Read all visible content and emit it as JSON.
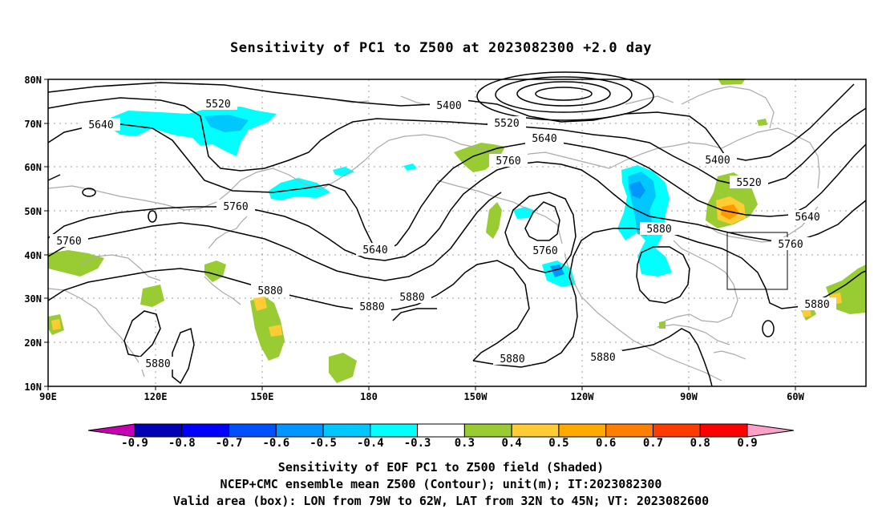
{
  "title": "Sensitivity of PC1 to Z500 at 2023082300 +2.0 day",
  "captions": {
    "line1": "Sensitivity of EOF PC1 to Z500 field (Shaded)",
    "line2": "NCEP+CMC ensemble mean Z500 (Contour); unit(m); IT:2023082300",
    "line3": "Valid area (box): LON from 79W to 62W, LAT from 32N to 45N; VT: 2023082600"
  },
  "map": {
    "lat_labels": [
      "80N",
      "70N",
      "60N",
      "50N",
      "40N",
      "30N",
      "20N",
      "10N"
    ],
    "lon_labels": [
      "90E",
      "120E",
      "150E",
      "180",
      "150W",
      "120W",
      "90W",
      "60W"
    ],
    "contour_labels": [
      "5520",
      "5640",
      "5400",
      "5520",
      "5640",
      "5760",
      "5760",
      "5760",
      "5640",
      "5760",
      "5880",
      "5880",
      "5880",
      "5880",
      "5880",
      "5880",
      "5880",
      "5400",
      "5520",
      "5640",
      "5760",
      "5880"
    ],
    "colors": {
      "contour": "#000000",
      "coast": "#a9a9a9",
      "grid": "#9e9e9e",
      "cyan": "#00ffff",
      "lightblue": "#00c8ff",
      "blue": "#0096ff",
      "green": "#99cc33",
      "yellow": "#ffcc33",
      "orange": "#ff9900"
    }
  },
  "colorbar": {
    "labels": [
      "-0.9",
      "-0.8",
      "-0.7",
      "-0.6",
      "-0.5",
      "-0.4",
      "-0.3",
      "0.3",
      "0.4",
      "0.5",
      "0.6",
      "0.7",
      "0.8",
      "0.9"
    ],
    "colors": [
      "#0000b4",
      "#0000ff",
      "#0050ff",
      "#0096ff",
      "#00c8ff",
      "#00ffff",
      "#ffffff",
      "#99cc33",
      "#ffcc33",
      "#ffaa00",
      "#ff7f00",
      "#ff3c00",
      "#ff0000"
    ],
    "left_arrow_color": "#c800b4",
    "right_arrow_color": "#ffa0c8"
  }
}
